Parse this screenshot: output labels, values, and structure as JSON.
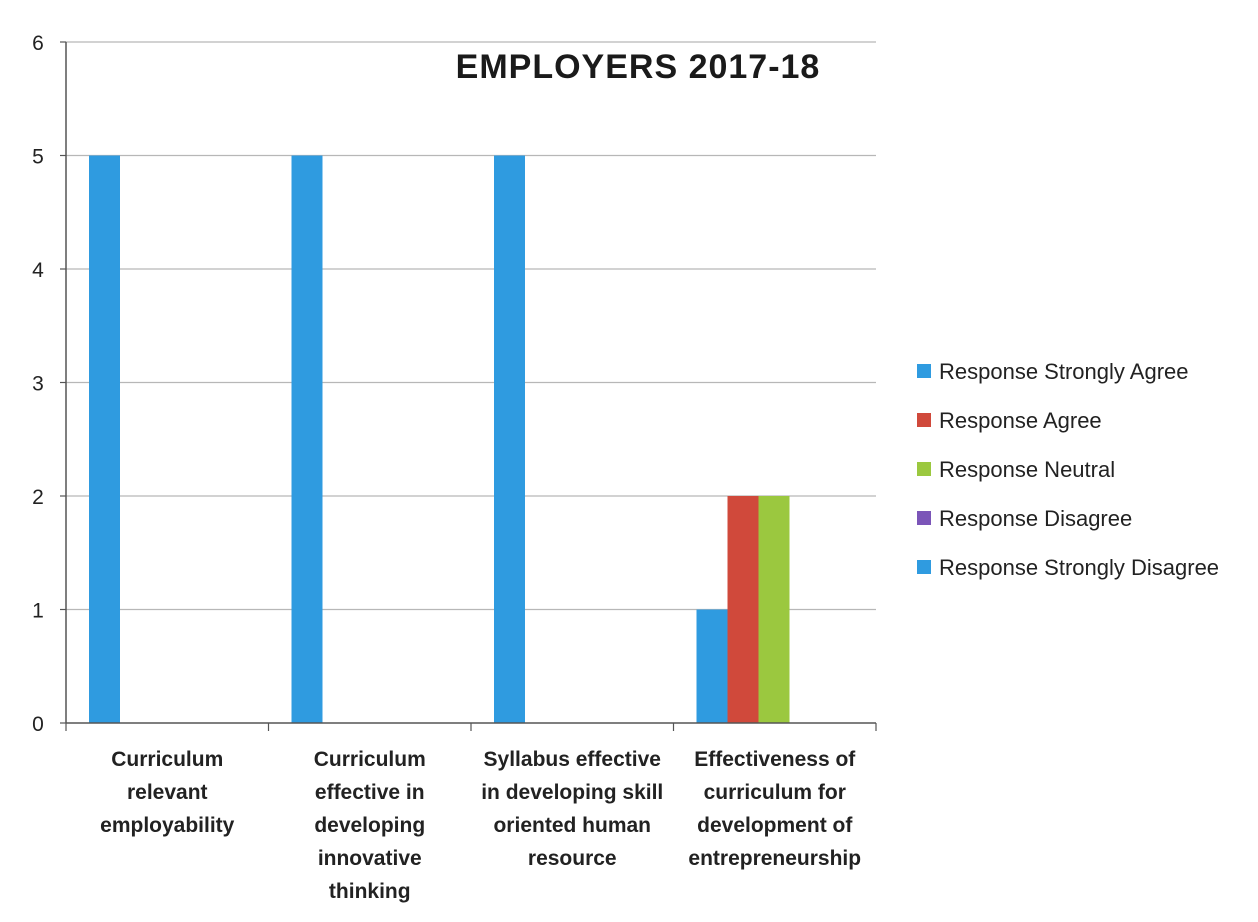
{
  "chart_data": {
    "type": "bar",
    "title": "EMPLOYERS 2017-18",
    "xlabel": "",
    "ylabel": "",
    "ylim": [
      0,
      6
    ],
    "y_ticks": [
      "0",
      "1",
      "2",
      "3",
      "4",
      "5",
      "6"
    ],
    "grid": true,
    "legend_position": "right",
    "categories": [
      [
        "Curriculum",
        "relevant",
        "employability"
      ],
      [
        "Curriculum",
        "effective in",
        "developing",
        "innovative",
        "thinking"
      ],
      [
        "Syllabus effective",
        "in developing skill",
        "oriented human",
        "resource"
      ],
      [
        "Effectiveness of",
        "curriculum for",
        "development of",
        "entrepreneurship"
      ]
    ],
    "series": [
      {
        "name": "Response Strongly Agree",
        "color": "#2f9be0",
        "values": [
          5,
          5,
          5,
          1
        ]
      },
      {
        "name": "Response Agree",
        "color": "#d0493b",
        "values": [
          0,
          0,
          0,
          2
        ]
      },
      {
        "name": "Response Neutral",
        "color": "#9bc83f",
        "values": [
          0,
          0,
          0,
          2
        ]
      },
      {
        "name": "Response Disagree",
        "color": "#7b55b8",
        "values": [
          0,
          0,
          0,
          0
        ]
      },
      {
        "name": "Response Strongly Disagree",
        "color": "#2f9be0",
        "values": [
          0,
          0,
          0,
          0
        ]
      }
    ]
  }
}
